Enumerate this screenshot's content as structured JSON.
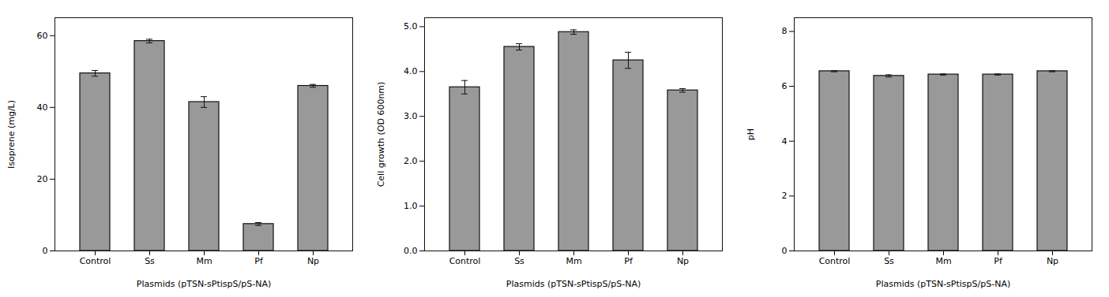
{
  "chart_data": [
    {
      "type": "bar",
      "categories": [
        "Control",
        "Ss",
        "Mm",
        "Pf",
        "Np"
      ],
      "values": [
        49.5,
        58.5,
        41.5,
        7.5,
        46.0
      ],
      "errors": [
        0.8,
        0.5,
        1.5,
        0.4,
        0.4
      ],
      "xlabel": "Plasmids (pTSN-sPtispS/pS-NA)",
      "ylabel": "Isoprene (mg/L)",
      "ylim": [
        0,
        65
      ],
      "yticks": [
        0,
        20,
        40,
        60
      ],
      "color": "#999999",
      "grid": false
    },
    {
      "type": "bar",
      "categories": [
        "Control",
        "Ss",
        "Mm",
        "Pf",
        "Np"
      ],
      "values": [
        3.65,
        4.55,
        4.88,
        4.25,
        3.58
      ],
      "errors": [
        0.15,
        0.07,
        0.05,
        0.18,
        0.04
      ],
      "xlabel": "Plasmids (pTSN-sPtispS/pS-NA)",
      "ylabel": "Cell growth (OD 600nm)",
      "ylim": [
        0,
        5.2
      ],
      "yticks": [
        0,
        1,
        2,
        3,
        4,
        5
      ],
      "color": "#999999",
      "grid": false
    },
    {
      "type": "bar",
      "categories": [
        "Control",
        "Ss",
        "Mm",
        "Pf",
        "Np"
      ],
      "values": [
        6.55,
        6.38,
        6.43,
        6.43,
        6.55
      ],
      "errors": [
        0.02,
        0.04,
        0.02,
        0.02,
        0.02
      ],
      "xlabel": "Plasmids (pTSN-sPtispS/pS-NA)",
      "ylabel": "pH",
      "ylim": [
        0,
        8.5
      ],
      "yticks": [
        0,
        2,
        4,
        6,
        8
      ],
      "color": "#999999",
      "grid": false
    }
  ]
}
